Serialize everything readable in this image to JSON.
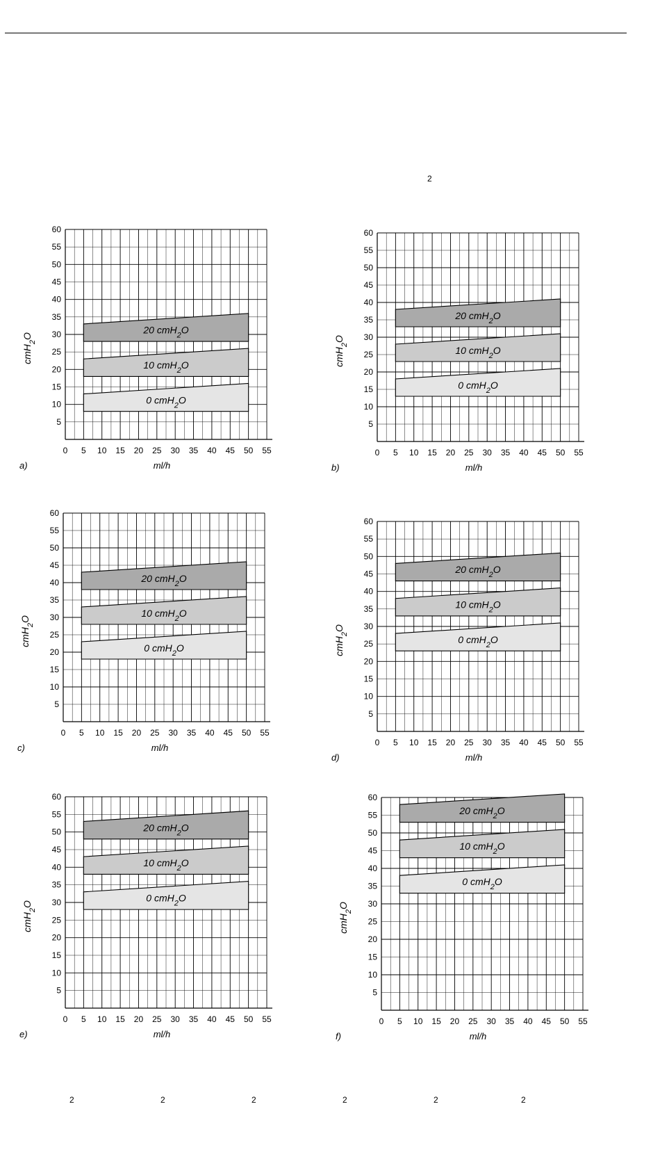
{
  "page": {
    "top_marker": "2",
    "footer_markers": [
      "2",
      "2",
      "2",
      "2",
      "2",
      "2"
    ]
  },
  "colors": {
    "band_20": "#aaaaaa",
    "band_10": "#cbcbcb",
    "band_0": "#e5e5e5",
    "grid": "#000000"
  },
  "chart_data": [
    {
      "type": "area",
      "panel_label": "a)",
      "xlabel": "ml/h",
      "ylabel": "cmH",
      "ylabel_sub": "2",
      "ylabel_tail": "O",
      "xlim": [
        0,
        55
      ],
      "ylim": [
        0,
        60
      ],
      "xticks": [
        "0",
        "5",
        "10",
        "15",
        "20",
        "25",
        "30",
        "35",
        "40",
        "45",
        "50",
        "55"
      ],
      "yticks": [
        "5",
        "10",
        "15",
        "20",
        "25",
        "30",
        "35",
        "40",
        "45",
        "50",
        "55",
        "60"
      ],
      "grid": true,
      "series": [
        {
          "label": "20 cmH",
          "sub": "2",
          "tail": "O",
          "x": [
            5,
            50
          ],
          "lower": [
            28,
            28
          ],
          "upper": [
            33,
            36
          ]
        },
        {
          "label": "10 cmH",
          "sub": "2",
          "tail": "O",
          "x": [
            5,
            50
          ],
          "lower": [
            18,
            18
          ],
          "upper": [
            23,
            26
          ]
        },
        {
          "label": "0 cmH",
          "sub": "2",
          "tail": "O",
          "x": [
            5,
            50
          ],
          "lower": [
            8,
            8
          ],
          "upper": [
            13,
            16
          ]
        }
      ]
    },
    {
      "type": "area",
      "panel_label": "b)",
      "xlabel": "ml/h",
      "ylabel": "cmH",
      "ylabel_sub": "2",
      "ylabel_tail": "O",
      "xlim": [
        0,
        55
      ],
      "ylim": [
        0,
        60
      ],
      "xticks": [
        "0",
        "5",
        "10",
        "15",
        "20",
        "25",
        "30",
        "35",
        "40",
        "45",
        "50",
        "55"
      ],
      "yticks": [
        "5",
        "10",
        "15",
        "20",
        "25",
        "30",
        "35",
        "40",
        "45",
        "50",
        "55",
        "60"
      ],
      "grid": true,
      "series": [
        {
          "label": "20 cmH",
          "sub": "2",
          "tail": "O",
          "x": [
            5,
            50
          ],
          "lower": [
            33,
            33
          ],
          "upper": [
            38,
            41
          ]
        },
        {
          "label": "10 cmH",
          "sub": "2",
          "tail": "O",
          "x": [
            5,
            50
          ],
          "lower": [
            23,
            23
          ],
          "upper": [
            28,
            31
          ]
        },
        {
          "label": "0 cmH",
          "sub": "2",
          "tail": "O",
          "x": [
            5,
            50
          ],
          "lower": [
            13,
            13
          ],
          "upper": [
            18,
            21
          ]
        }
      ]
    },
    {
      "type": "area",
      "panel_label": "c)",
      "xlabel": "ml/h",
      "ylabel": "cmH",
      "ylabel_sub": "2",
      "ylabel_tail": "O",
      "xlim": [
        0,
        55
      ],
      "ylim": [
        0,
        60
      ],
      "xticks": [
        "0",
        "5",
        "10",
        "15",
        "20",
        "25",
        "30",
        "35",
        "40",
        "45",
        "50",
        "55"
      ],
      "yticks": [
        "5",
        "10",
        "15",
        "20",
        "25",
        "30",
        "35",
        "40",
        "45",
        "50",
        "55",
        "60"
      ],
      "grid": true,
      "series": [
        {
          "label": "20 cmH",
          "sub": "2",
          "tail": "O",
          "x": [
            5,
            50
          ],
          "lower": [
            38,
            38
          ],
          "upper": [
            43,
            46
          ]
        },
        {
          "label": "10 cmH",
          "sub": "2",
          "tail": "O",
          "x": [
            5,
            50
          ],
          "lower": [
            28,
            28
          ],
          "upper": [
            33,
            36
          ]
        },
        {
          "label": "0 cmH",
          "sub": "2",
          "tail": "O",
          "x": [
            5,
            50
          ],
          "lower": [
            18,
            18
          ],
          "upper": [
            23,
            26
          ]
        }
      ]
    },
    {
      "type": "area",
      "panel_label": "d)",
      "xlabel": "ml/h",
      "ylabel": "cmH",
      "ylabel_sub": "2",
      "ylabel_tail": "O",
      "xlim": [
        0,
        55
      ],
      "ylim": [
        0,
        60
      ],
      "xticks": [
        "0",
        "5",
        "10",
        "15",
        "20",
        "25",
        "30",
        "35",
        "40",
        "45",
        "50",
        "55"
      ],
      "yticks": [
        "5",
        "10",
        "15",
        "20",
        "25",
        "30",
        "35",
        "40",
        "45",
        "50",
        "55",
        "60"
      ],
      "grid": true,
      "series": [
        {
          "label": "20 cmH",
          "sub": "2",
          "tail": "O",
          "x": [
            5,
            50
          ],
          "lower": [
            43,
            43
          ],
          "upper": [
            48,
            51
          ]
        },
        {
          "label": "10 cmH",
          "sub": "2",
          "tail": "O",
          "x": [
            5,
            50
          ],
          "lower": [
            33,
            33
          ],
          "upper": [
            38,
            41
          ]
        },
        {
          "label": "0 cmH",
          "sub": "2",
          "tail": "O",
          "x": [
            5,
            50
          ],
          "lower": [
            23,
            23
          ],
          "upper": [
            28,
            31
          ]
        }
      ]
    },
    {
      "type": "area",
      "panel_label": "e)",
      "xlabel": "ml/h",
      "ylabel": "cmH",
      "ylabel_sub": "2",
      "ylabel_tail": "O",
      "xlim": [
        0,
        55
      ],
      "ylim": [
        0,
        60
      ],
      "xticks": [
        "0",
        "5",
        "10",
        "15",
        "20",
        "25",
        "30",
        "35",
        "40",
        "45",
        "50",
        "55"
      ],
      "yticks": [
        "5",
        "10",
        "15",
        "20",
        "25",
        "30",
        "35",
        "40",
        "45",
        "50",
        "55",
        "60"
      ],
      "grid": true,
      "series": [
        {
          "label": "20 cmH",
          "sub": "2",
          "tail": "O",
          "x": [
            5,
            50
          ],
          "lower": [
            48,
            48
          ],
          "upper": [
            53,
            56
          ]
        },
        {
          "label": "10 cmH",
          "sub": "2",
          "tail": "O",
          "x": [
            5,
            50
          ],
          "lower": [
            38,
            38
          ],
          "upper": [
            43,
            46
          ]
        },
        {
          "label": "0 cmH",
          "sub": "2",
          "tail": "O",
          "x": [
            5,
            50
          ],
          "lower": [
            28,
            28
          ],
          "upper": [
            33,
            36
          ]
        }
      ]
    },
    {
      "type": "area",
      "panel_label": "f)",
      "xlabel": "ml/h",
      "ylabel": "cmH",
      "ylabel_sub": "2",
      "ylabel_tail": "O",
      "xlim": [
        0,
        55
      ],
      "ylim": [
        0,
        60
      ],
      "xticks": [
        "0",
        "5",
        "10",
        "15",
        "20",
        "25",
        "30",
        "35",
        "40",
        "45",
        "50",
        "55"
      ],
      "yticks": [
        "5",
        "10",
        "15",
        "20",
        "25",
        "30",
        "35",
        "40",
        "45",
        "50",
        "55",
        "60"
      ],
      "grid": true,
      "series": [
        {
          "label": "20 cmH",
          "sub": "2",
          "tail": "O",
          "x": [
            5,
            50
          ],
          "lower": [
            53,
            53
          ],
          "upper": [
            58,
            61
          ]
        },
        {
          "label": "10 cmH",
          "sub": "2",
          "tail": "O",
          "x": [
            5,
            50
          ],
          "lower": [
            43,
            43
          ],
          "upper": [
            48,
            51
          ]
        },
        {
          "label": "0 cmH",
          "sub": "2",
          "tail": "O",
          "x": [
            5,
            50
          ],
          "lower": [
            33,
            33
          ],
          "upper": [
            38,
            41
          ]
        }
      ]
    }
  ]
}
